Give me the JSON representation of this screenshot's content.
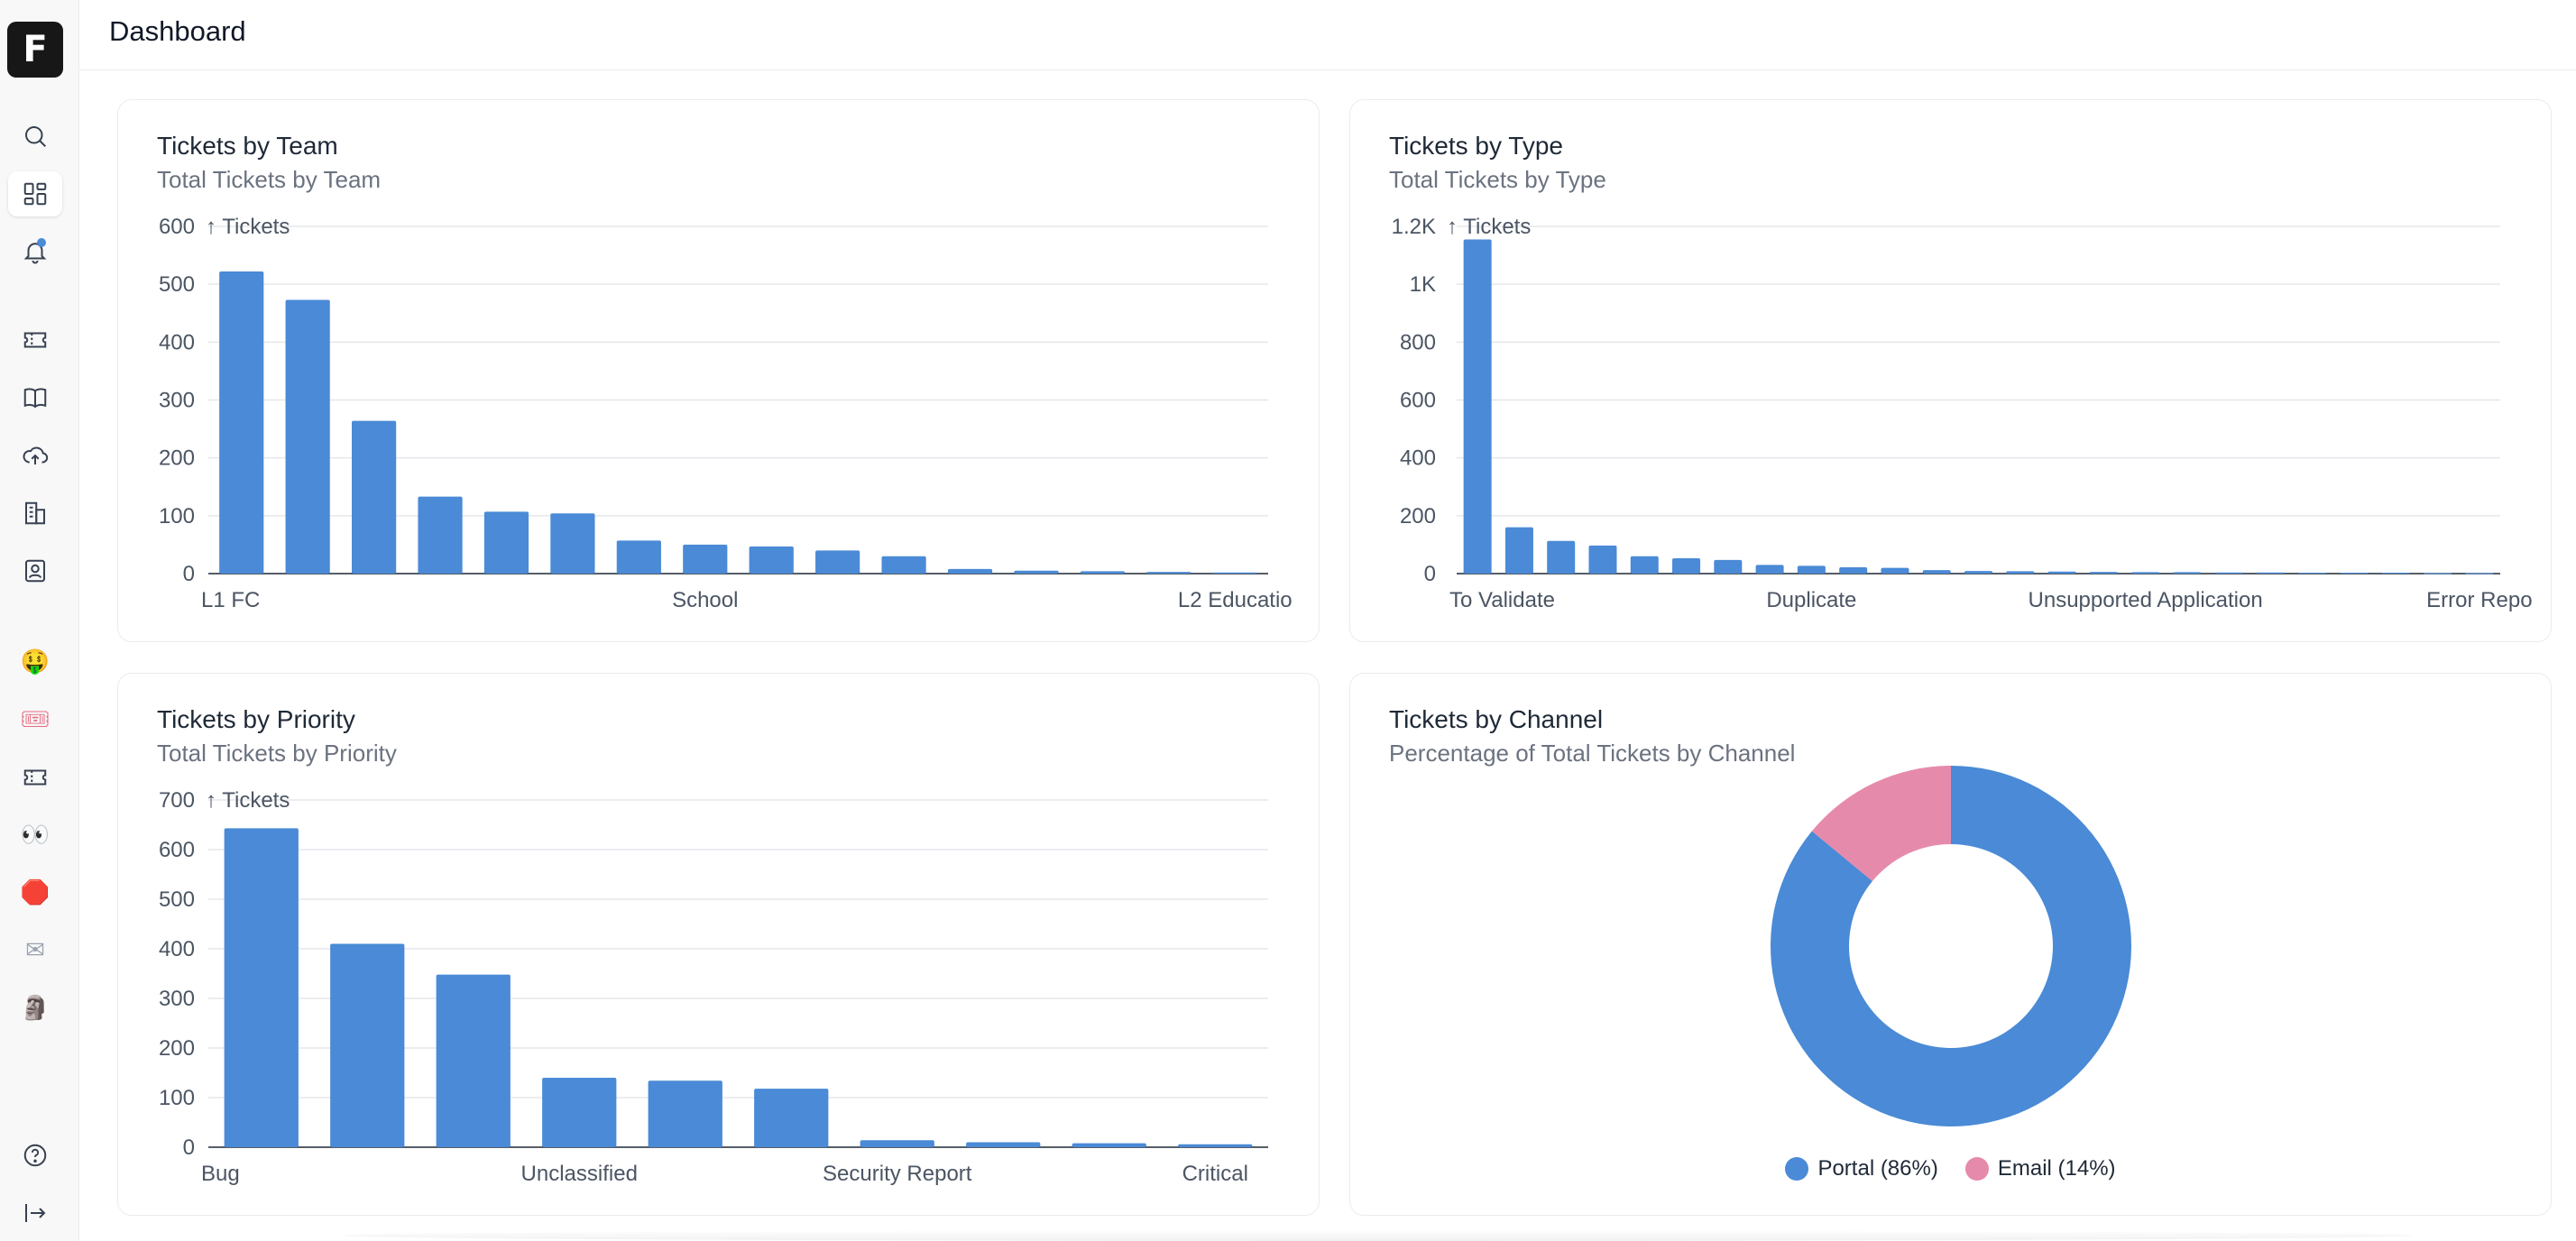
{
  "app": {
    "logo_letter": "F",
    "page_title": "Dashboard"
  },
  "sidebar": {
    "top_icons": [
      "search-icon",
      "dashboard-icon",
      "notification-bell-icon"
    ],
    "nav_icons": [
      "ticket-icon",
      "book-icon",
      "cloud-upload-icon",
      "building-icon",
      "contact-icon"
    ],
    "emoji_items": [
      "🤑",
      "🎟",
      "ticket-outline",
      "👀",
      "🛑",
      "✉",
      "🗿"
    ],
    "bottom_icons": [
      "help-icon",
      "logout-icon"
    ]
  },
  "colors": {
    "bar": "#4a8ad6",
    "portal": "#4a8ad6",
    "email": "#e68aac"
  },
  "cards": {
    "team": {
      "title": "Tickets by Team",
      "subtitle": "Total Tickets by Team"
    },
    "type": {
      "title": "Tickets by Type",
      "subtitle": "Total Tickets by Type"
    },
    "priority": {
      "title": "Tickets by Priority",
      "subtitle": "Total Tickets by Priority"
    },
    "channel": {
      "title": "Tickets by Channel",
      "subtitle": "Percentage of Total Tickets by Channel"
    }
  },
  "chart_data": [
    {
      "id": "team",
      "type": "bar",
      "title": "Tickets by Team",
      "subtitle": "Total Tickets by Team",
      "ylabel": "↑ Tickets",
      "ylim": [
        0,
        600
      ],
      "yticks": [
        "0",
        "100",
        "200",
        "300",
        "400",
        "500",
        "600"
      ],
      "x_tick_labels": [
        {
          "index": 0,
          "text": "L1 FC"
        },
        {
          "index": 7,
          "text": "School"
        },
        {
          "index": 15,
          "text": "L2 Educatio"
        }
      ],
      "values": [
        522,
        473,
        264,
        133,
        107,
        104,
        57,
        50,
        47,
        40,
        30,
        8,
        5,
        4,
        3,
        2
      ]
    },
    {
      "id": "type",
      "type": "bar",
      "title": "Tickets by Type",
      "subtitle": "Total Tickets by Type",
      "ylabel": "↑ Tickets",
      "ylim": [
        0,
        1200
      ],
      "yticks": [
        "0",
        "200",
        "400",
        "600",
        "800",
        "1K",
        "1.2K"
      ],
      "x_tick_labels": [
        {
          "index": 0,
          "text": "To Validate"
        },
        {
          "index": 8,
          "text": "Duplicate"
        },
        {
          "index": 16,
          "text": "Unsupported Application"
        },
        {
          "index": 24,
          "text": "Error Repo"
        }
      ],
      "values": [
        1155,
        160,
        113,
        97,
        60,
        53,
        47,
        30,
        27,
        22,
        20,
        12,
        9,
        8,
        7,
        6,
        5,
        5,
        4,
        4,
        3,
        3,
        3,
        2,
        2
      ]
    },
    {
      "id": "priority",
      "type": "bar",
      "title": "Tickets by Priority",
      "subtitle": "Total Tickets by Priority",
      "ylabel": "↑ Tickets",
      "ylim": [
        0,
        700
      ],
      "yticks": [
        "0",
        "100",
        "200",
        "300",
        "400",
        "500",
        "600",
        "700"
      ],
      "x_tick_labels": [
        {
          "index": 0,
          "text": "Bug"
        },
        {
          "index": 3,
          "text": "Unclassified"
        },
        {
          "index": 6,
          "text": "Security Report"
        },
        {
          "index": 9,
          "text": "Critical"
        }
      ],
      "values": [
        643,
        410,
        348,
        140,
        134,
        118,
        14,
        10,
        8,
        6
      ]
    },
    {
      "id": "channel",
      "type": "pie",
      "title": "Tickets by Channel",
      "subtitle": "Percentage of Total Tickets by Channel",
      "donut": true,
      "slices": [
        {
          "label": "Portal (86%)",
          "value": 86,
          "color": "#4a8ad6"
        },
        {
          "label": "Email (14%)",
          "value": 14,
          "color": "#e68aac"
        }
      ]
    }
  ]
}
